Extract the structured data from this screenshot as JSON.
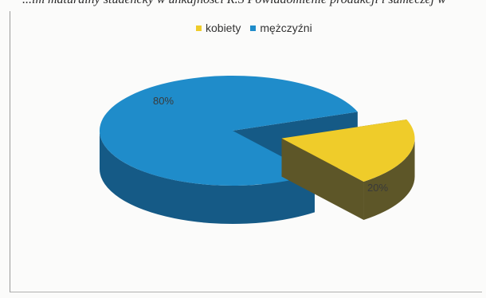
{
  "caption": "...im maturalny studencky w unkajnosci R.S Powiadomienie produkcji i sumeczej w",
  "chart_data": {
    "type": "pie",
    "categories": [
      "kobiety",
      "mężczyźni"
    ],
    "values": [
      20,
      80
    ],
    "data_labels": [
      "20%",
      "80%"
    ],
    "colors": [
      "#efcc2a",
      "#1f8cca"
    ],
    "side_colors": [
      "#5d5628",
      "#155a86"
    ],
    "legend_position": "top",
    "style": "3d-exploded"
  }
}
